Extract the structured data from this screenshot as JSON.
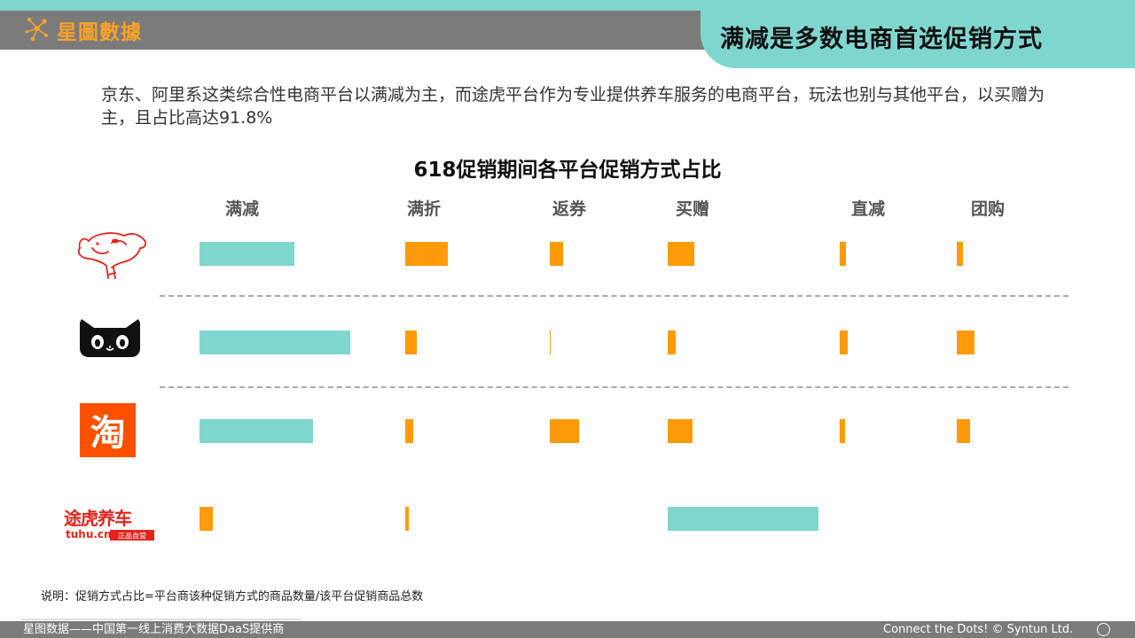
{
  "header": {
    "logo_text": "星圖數據",
    "title": "满减是多数电商首选促销方式"
  },
  "intro": "京东、阿里系这类综合性电商平台以满减为主，而途虎平台作为专业提供养车服务的电商平台，玩法也别与其他平台，以买赠为主，且占比高达91.8%",
  "chart_data": {
    "type": "bar",
    "title": "618促销期间各平台促销方式占比",
    "categories": [
      "满减",
      "满折",
      "返券",
      "买赠",
      "直减",
      "团购"
    ],
    "series": [
      {
        "name": "京东",
        "values": [
          58,
          26,
          8,
          16,
          4,
          4
        ]
      },
      {
        "name": "天猫",
        "values": [
          92,
          7,
          0.5,
          5,
          5,
          11
        ]
      },
      {
        "name": "淘宝",
        "values": [
          69,
          5,
          18,
          15,
          3,
          8
        ]
      },
      {
        "name": "途虎养车",
        "values": [
          8,
          2,
          null,
          91.8,
          null,
          null
        ]
      }
    ],
    "brand_logos": [
      "jd-dog-logo",
      "tmall-cat-logo",
      "taobao-logo",
      "tuhu-logo"
    ],
    "tuhu_logo_text": {
      "main": "途虎养车",
      "domain": "tuhu.cn",
      "badge": "正品自营"
    },
    "colors": {
      "highlight": "#7fd6cf",
      "normal": "#ff9a0a"
    }
  },
  "note": "说明：促销方式占比=平台商该种促销方式的商品数量/该平台促销商品总数",
  "footer": {
    "left": "星图数据——中国第一线上消费大数据DaaS提供商",
    "right": "Connect the Dots! © Syntun Ltd."
  }
}
